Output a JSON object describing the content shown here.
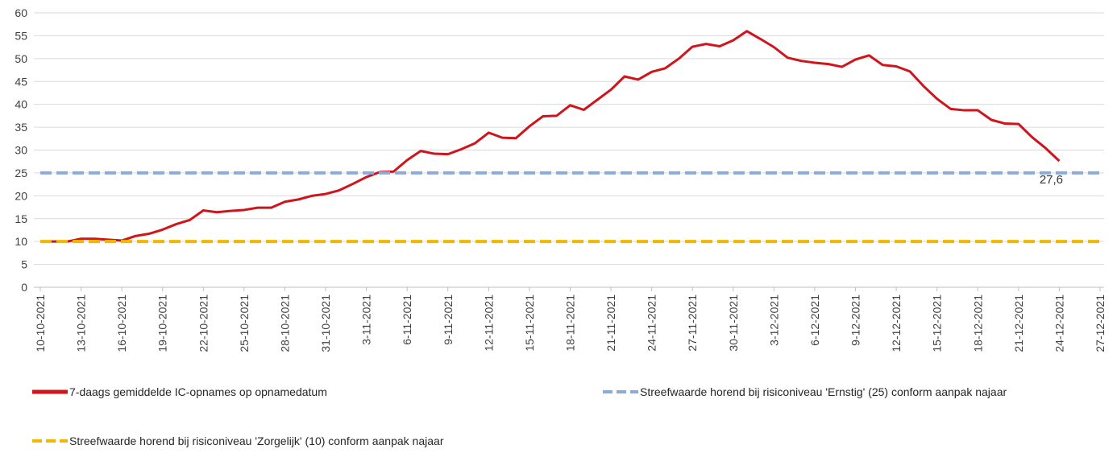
{
  "chart_data": {
    "type": "line",
    "categories": [
      "10-10-2021",
      null,
      null,
      "13-10-2021",
      null,
      null,
      "16-10-2021",
      null,
      null,
      "19-10-2021",
      null,
      null,
      "22-10-2021",
      null,
      null,
      "25-10-2021",
      null,
      null,
      "28-10-2021",
      null,
      null,
      "31-10-2021",
      null,
      null,
      "3-11-2021",
      null,
      null,
      "6-11-2021",
      null,
      null,
      "9-11-2021",
      null,
      null,
      "12-11-2021",
      null,
      null,
      "15-11-2021",
      null,
      null,
      "18-11-2021",
      null,
      null,
      "21-11-2021",
      null,
      null,
      "24-11-2021",
      null,
      null,
      "27-11-2021",
      null,
      null,
      "30-11-2021",
      null,
      null,
      "3-12-2021",
      null,
      null,
      "6-12-2021",
      null,
      null,
      "9-12-2021",
      null,
      null,
      "12-12-2021",
      null,
      null,
      "15-12-2021",
      null,
      null,
      "18-12-2021",
      null,
      null,
      "21-12-2021",
      null,
      null,
      "24-12-2021",
      null,
      null,
      "27-12-2021"
    ],
    "series": [
      {
        "name": "7-daags gemiddelde IC-opnames op opnamedatum",
        "color": "#d0141b",
        "values": [
          10,
          10,
          10,
          10.6,
          10.6,
          10.4,
          10.2,
          11.2,
          11.7,
          12.6,
          13.8,
          14.7,
          16.8,
          16.4,
          16.7,
          16.9,
          17.4,
          17.4,
          18.7,
          19.2,
          20,
          20.4,
          21.2,
          22.6,
          24.1,
          25.2,
          25.3,
          27.8,
          29.8,
          29.2,
          29.1,
          30.2,
          31.5,
          33.8,
          32.7,
          32.6,
          35.2,
          37.4,
          37.5,
          39.8,
          38.8,
          41,
          43.2,
          46.1,
          45.4,
          47.1,
          47.9,
          50,
          52.6,
          53.2,
          52.7,
          54,
          56,
          54.3,
          52.5,
          50.2,
          49.5,
          49.1,
          48.8,
          48.2,
          49.8,
          50.7,
          48.6,
          48.3,
          47.2,
          44,
          41.2,
          39,
          38.7,
          38.7,
          36.6,
          35.8,
          35.7,
          32.8,
          30.4,
          27.6,
          null,
          null,
          null
        ],
        "value_labels": [
          null,
          null,
          null,
          null,
          null,
          null,
          null,
          null,
          null,
          null,
          null,
          null,
          null,
          null,
          null,
          null,
          null,
          null,
          null,
          null,
          null,
          null,
          null,
          null,
          null,
          null,
          null,
          null,
          null,
          null,
          null,
          null,
          null,
          null,
          null,
          null,
          null,
          null,
          null,
          null,
          null,
          null,
          null,
          null,
          null,
          null,
          null,
          null,
          null,
          null,
          null,
          null,
          null,
          null,
          null,
          null,
          null,
          null,
          null,
          null,
          null,
          null,
          null,
          null,
          null,
          null,
          null,
          null,
          null,
          null,
          null,
          null,
          null,
          null,
          null,
          "27,6",
          null,
          null,
          null
        ]
      },
      {
        "name": "Streefwaarde horend bij risiconiveau 'Ernstig' (25) conform aanpak najaar",
        "color": "#8eaadb",
        "dashed": true,
        "level": 25
      },
      {
        "name": "Streefwaarde horend bij risiconiveau 'Zorgelijk' (10) conform aanpak najaar",
        "color": "#f2b800",
        "dashed": true,
        "level": 10
      }
    ],
    "ylim": [
      0,
      60
    ],
    "yticks": [
      0,
      5,
      10,
      15,
      20,
      25,
      30,
      35,
      40,
      45,
      50,
      55,
      60
    ],
    "grid": true
  }
}
